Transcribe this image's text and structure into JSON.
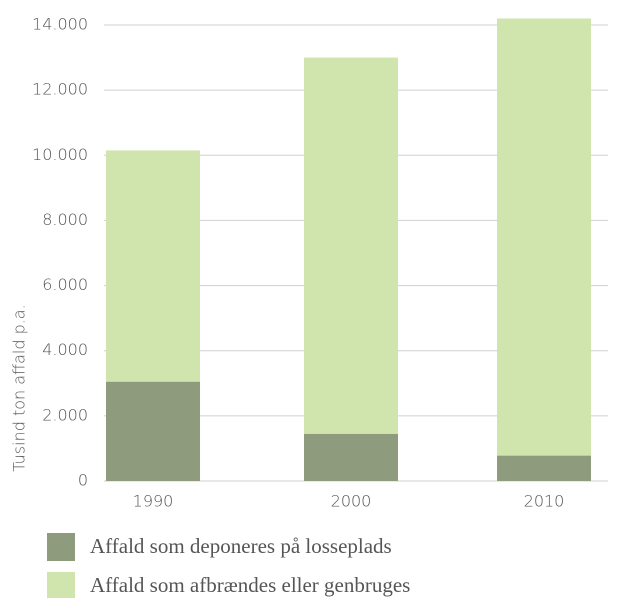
{
  "chart_data": {
    "type": "stacked_bar",
    "y_label": "Tusind ton affald p.a.",
    "categories": [
      "1990",
      "2000",
      "2010"
    ],
    "series": [
      {
        "name": "Affald som deponeres på losseplads",
        "color": "#8e9b7c",
        "values": [
          3050,
          1450,
          780
        ]
      },
      {
        "name": "Affald som afbrændes eller genbruges",
        "color": "#d0e4ad",
        "values": [
          7100,
          11550,
          13420
        ]
      }
    ],
    "ylim": [
      0,
      14000
    ],
    "yticks": [
      0,
      {
        "value": 2000,
        "label": "2.000"
      },
      {
        "value": 4000,
        "label": "4.000"
      },
      {
        "value": 6000,
        "label": "6.000"
      },
      {
        "value": 8000,
        "label": "8.000"
      },
      {
        "value": 10000,
        "label": "10.000"
      },
      {
        "value": 12000,
        "label": "12.000"
      },
      {
        "value": 14000,
        "label": "14.000"
      }
    ],
    "grid": true
  }
}
